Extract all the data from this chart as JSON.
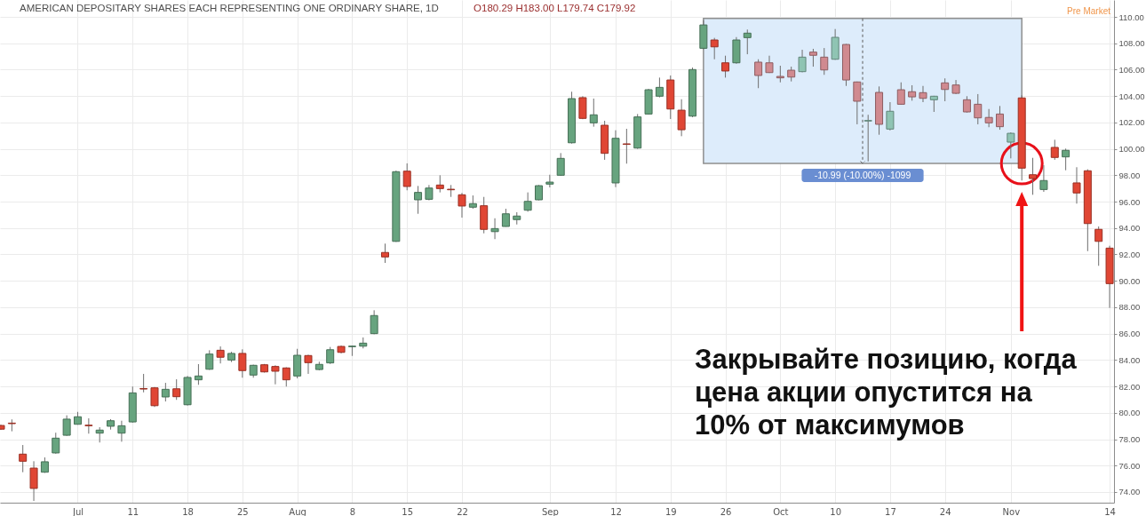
{
  "chart_data": {
    "type": "candlestick",
    "title": "AMERICAN DEPOSITARY SHARES EACH REPRESENTING ONE ORDINARY SHARE, 1D",
    "subtitle": "O180.29 H183.00 L179.74 C179.92",
    "categories": [
      null,
      null,
      null,
      null,
      null,
      null,
      null,
      "Jul",
      null,
      null,
      null,
      null,
      "11",
      null,
      null,
      null,
      null,
      "18",
      null,
      null,
      null,
      null,
      "25",
      null,
      null,
      null,
      null,
      "Aug",
      null,
      null,
      null,
      null,
      "8",
      null,
      null,
      null,
      null,
      "15",
      null,
      null,
      null,
      null,
      "22",
      null,
      null,
      null,
      null,
      null,
      null,
      null,
      "Sep",
      null,
      null,
      null,
      null,
      null,
      "12",
      null,
      null,
      null,
      null,
      "19",
      null,
      null,
      null,
      null,
      "26",
      null,
      null,
      null,
      null,
      "Oct",
      null,
      null,
      null,
      null,
      "10",
      null,
      null,
      null,
      null,
      "17",
      null,
      null,
      null,
      null,
      "24",
      null,
      null,
      null,
      null,
      null,
      "Nov",
      null,
      null,
      null,
      null,
      null,
      null,
      null,
      null,
      "14"
    ],
    "ohlc": [
      [
        79.04,
        79.1,
        78.7,
        78.76
      ],
      [
        79.22,
        79.5,
        78.6,
        79.18
      ],
      [
        76.87,
        77.56,
        75.5,
        76.33
      ],
      [
        75.81,
        76.33,
        73.32,
        74.27
      ],
      [
        75.5,
        76.62,
        75.45,
        76.29
      ],
      [
        76.96,
        78.49,
        76.9,
        78.08
      ],
      [
        78.3,
        79.81,
        78.25,
        79.52
      ],
      [
        79.13,
        80.07,
        79.1,
        79.7
      ],
      [
        79.06,
        79.58,
        78.42,
        79.02
      ],
      [
        78.46,
        78.91,
        77.75,
        78.69
      ],
      [
        78.98,
        79.52,
        78.73,
        79.4
      ],
      [
        78.46,
        79.4,
        77.81,
        79.02
      ],
      [
        79.31,
        81.99,
        79.25,
        81.51
      ],
      [
        81.84,
        82.95,
        81.55,
        81.8
      ],
      [
        81.89,
        81.95,
        80.44,
        80.54
      ],
      [
        81.2,
        82.27,
        80.86,
        81.78
      ],
      [
        81.82,
        82.54,
        80.98,
        81.22
      ],
      [
        80.61,
        82.79,
        80.55,
        82.68
      ],
      [
        82.5,
        83.69,
        82.12,
        82.79
      ],
      [
        83.3,
        84.74,
        83.25,
        84.45
      ],
      [
        84.74,
        85.03,
        83.74,
        84.21
      ],
      [
        84.0,
        84.62,
        83.85,
        84.5
      ],
      [
        84.5,
        84.81,
        82.66,
        83.2
      ],
      [
        82.86,
        83.65,
        82.66,
        83.6
      ],
      [
        83.64,
        83.7,
        83.05,
        83.1
      ],
      [
        83.51,
        83.6,
        82.16,
        83.15
      ],
      [
        83.4,
        83.45,
        81.99,
        82.5
      ],
      [
        82.79,
        84.85,
        82.61,
        84.36
      ],
      [
        84.34,
        84.4,
        82.95,
        83.8
      ],
      [
        83.28,
        83.87,
        83.22,
        83.67
      ],
      [
        83.78,
        84.99,
        83.7,
        84.78
      ],
      [
        85.03,
        85.1,
        84.5,
        84.58
      ],
      [
        85.01,
        85.1,
        84.31,
        85.05
      ],
      [
        85.05,
        85.71,
        84.88,
        85.28
      ],
      [
        86.0,
        87.77,
        85.95,
        87.37
      ],
      [
        92.15,
        92.82,
        91.36,
        91.81
      ],
      [
        92.99,
        98.35,
        92.95,
        98.27
      ],
      [
        98.31,
        98.9,
        96.86,
        97.15
      ],
      [
        96.14,
        97.19,
        95.08,
        96.7
      ],
      [
        96.18,
        97.26,
        96.1,
        97.03
      ],
      [
        97.26,
        98.0,
        96.7,
        96.99
      ],
      [
        96.94,
        97.26,
        96.36,
        96.9
      ],
      [
        96.52,
        96.66,
        94.79,
        95.67
      ],
      [
        95.58,
        96.47,
        95.46,
        95.85
      ],
      [
        95.69,
        96.36,
        93.6,
        93.9
      ],
      [
        93.73,
        94.74,
        93.16,
        93.96
      ],
      [
        94.12,
        95.46,
        94.1,
        95.08
      ],
      [
        94.64,
        95.2,
        94.27,
        94.91
      ],
      [
        95.35,
        96.7,
        95.24,
        96.02
      ],
      [
        96.14,
        97.26,
        96.1,
        97.21
      ],
      [
        97.33,
        98.04,
        97.08,
        97.48
      ],
      [
        98.0,
        99.68,
        97.95,
        99.28
      ],
      [
        100.46,
        104.33,
        100.4,
        103.81
      ],
      [
        103.88,
        103.99,
        102.25,
        102.31
      ],
      [
        101.97,
        103.81,
        101.68,
        102.58
      ],
      [
        101.79,
        102.13,
        99.17,
        99.66
      ],
      [
        97.42,
        101.41,
        97.1,
        100.8
      ],
      [
        100.38,
        101.52,
        98.88,
        100.34
      ],
      [
        100.06,
        102.64,
        100.0,
        102.42
      ],
      [
        102.64,
        104.55,
        102.6,
        104.48
      ],
      [
        103.99,
        105.4,
        103.9,
        104.66
      ],
      [
        105.22,
        105.56,
        102.26,
        103.02
      ],
      [
        102.93,
        103.76,
        100.96,
        101.45
      ],
      [
        102.48,
        106.16,
        102.4,
        106.01
      ],
      [
        107.62,
        109.75,
        107.55,
        109.39
      ],
      [
        108.25,
        108.41,
        106.79,
        107.73
      ],
      [
        106.52,
        107.06,
        105.4,
        105.9
      ],
      [
        106.52,
        108.47,
        106.45,
        108.25
      ],
      [
        108.43,
        109.04,
        107.17,
        108.77
      ],
      [
        106.57,
        106.79,
        104.6,
        105.56
      ],
      [
        106.52,
        107.06,
        105.75,
        105.78
      ],
      [
        105.49,
        106.3,
        105.04,
        105.38
      ],
      [
        105.96,
        106.23,
        105.11,
        105.44
      ],
      [
        105.85,
        107.51,
        105.8,
        106.95
      ],
      [
        107.33,
        107.58,
        106.23,
        107.09
      ],
      [
        106.95,
        107.64,
        105.61,
        105.98
      ],
      [
        106.79,
        109.08,
        106.75,
        108.45
      ],
      [
        107.91,
        107.95,
        104.77,
        105.22
      ],
      [
        105.07,
        105.1,
        101.86,
        103.61
      ],
      [
        102.11,
        102.58,
        99.05,
        102.15
      ],
      [
        104.28,
        104.73,
        101.07,
        101.86
      ],
      [
        101.5,
        103.54,
        101.4,
        102.85
      ],
      [
        104.48,
        105.04,
        103.35,
        103.38
      ],
      [
        104.33,
        104.82,
        103.65,
        103.94
      ],
      [
        104.26,
        104.77,
        103.54,
        103.83
      ],
      [
        103.72,
        104.02,
        102.8,
        103.99
      ],
      [
        105.0,
        105.34,
        103.61,
        104.5
      ],
      [
        104.84,
        105.22,
        104.15,
        104.21
      ],
      [
        103.72,
        103.99,
        102.75,
        102.8
      ],
      [
        103.38,
        104.15,
        101.86,
        102.35
      ],
      [
        102.38,
        103.02,
        101.64,
        101.97
      ],
      [
        102.64,
        103.25,
        101.45,
        101.68
      ],
      [
        100.51,
        101.25,
        99.28,
        101.18
      ],
      [
        103.86,
        104.06,
        97.6,
        98.54
      ],
      [
        98.04,
        99.32,
        96.52,
        97.75
      ],
      [
        96.92,
        98.76,
        96.74,
        97.6
      ],
      [
        100.11,
        100.69,
        99.17,
        99.35
      ],
      [
        99.39,
        100.02,
        98.38,
        99.89
      ],
      [
        97.42,
        98.61,
        95.85,
        96.66
      ],
      [
        98.34,
        98.45,
        92.25,
        94.34
      ],
      [
        93.9,
        94.12,
        91.14,
        92.99
      ],
      [
        92.48,
        92.66,
        87.95,
        89.79
      ]
    ],
    "colors": [
      "#e04634",
      "#e04634",
      "#e04634",
      "#e04634",
      "#67a47f",
      "#67a47f",
      "#67a47f",
      "#67a47f",
      "#e04634",
      "#67a47f",
      "#67a47f",
      "#67a47f",
      "#67a47f",
      "#e04634",
      "#e04634",
      "#67a47f",
      "#e04634",
      "#67a47f",
      "#67a47f",
      "#67a47f",
      "#e04634",
      "#67a47f",
      "#e04634",
      "#67a47f",
      "#e04634",
      "#e04634",
      "#e04634",
      "#67a47f",
      "#e04634",
      "#67a47f",
      "#67a47f",
      "#e04634",
      "#67a47f",
      "#67a47f",
      "#67a47f",
      "#e04634",
      "#67a47f",
      "#e04634",
      "#67a47f",
      "#67a47f",
      "#e04634",
      "#e04634",
      "#e04634",
      "#67a47f",
      "#e04634",
      "#67a47f",
      "#67a47f",
      "#67a47f",
      "#67a47f",
      "#67a47f",
      "#67a47f",
      "#67a47f",
      "#67a47f",
      "#e04634",
      "#67a47f",
      "#e04634",
      "#67a47f",
      "#e04634",
      "#67a47f",
      "#67a47f",
      "#67a47f",
      "#e04634",
      "#e04634",
      "#67a47f",
      "#67a47f",
      "#e04634",
      "#e04634",
      "#67a47f",
      "#67a47f",
      "#d08a90",
      "#d08a90",
      "#d08a90",
      "#d08a90",
      "#8fc4b3",
      "#d08a90",
      "#d08a90",
      "#8fc4b3",
      "#d08a90",
      "#d08a90",
      "#8fc4b3",
      "#d08a90",
      "#8fc4b3",
      "#d08a90",
      "#d08a90",
      "#d08a90",
      "#8fc4b3",
      "#d08a90",
      "#d08a90",
      "#d08a90",
      "#d08a90",
      "#d08a90",
      "#d08a90",
      "#8fc4b3",
      "#e04634",
      "#e04634",
      "#67a47f",
      "#e04634",
      "#67a47f",
      "#e04634",
      "#e04634",
      "#e04634",
      "#e04634"
    ],
    "ylim": [
      73.19,
      111.28
    ],
    "yticks": [
      {
        "value": 74,
        "label": "74.00"
      },
      {
        "value": 76,
        "label": "76.00"
      },
      {
        "value": 78,
        "label": "78.00"
      },
      {
        "value": 80,
        "label": "80.00"
      },
      {
        "value": 82,
        "label": "82.00"
      },
      {
        "value": 84,
        "label": "84.00"
      },
      {
        "value": 86,
        "label": "86.00"
      },
      {
        "value": 88,
        "label": "88.00"
      },
      {
        "value": 90,
        "label": "90.00"
      },
      {
        "value": 92,
        "label": "92.00"
      },
      {
        "value": 94,
        "label": "94.00"
      },
      {
        "value": 96,
        "label": "96.00"
      },
      {
        "value": 98,
        "label": "98.00"
      },
      {
        "value": 100,
        "label": "100.00"
      },
      {
        "value": 102,
        "label": "102.00"
      },
      {
        "value": 104,
        "label": "104.00"
      },
      {
        "value": 106,
        "label": "106.00"
      },
      {
        "value": 108,
        "label": "108.00"
      },
      {
        "value": 110,
        "label": "110.00"
      }
    ],
    "grid": true,
    "bands": [
      {
        "axis": "y",
        "from": 98.89,
        "to": 109.88,
        "label": "-10.99 (-10.00%) -1099",
        "color": "#ddecfb"
      }
    ],
    "annotations": [
      "Pre Market",
      "Закрывайте позицию, когда\nцена акции опустится на\n10% от максимумов"
    ]
  }
}
